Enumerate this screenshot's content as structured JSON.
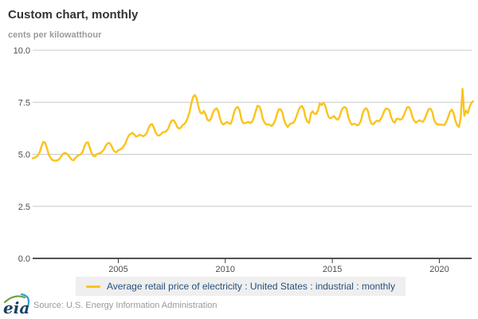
{
  "header": {
    "title": "Custom chart, monthly",
    "unit_label": "cents per kilowatthour"
  },
  "chart_data": {
    "type": "line",
    "title": "Custom chart, monthly",
    "ylabel": "cents per kilowatthour",
    "xlabel": "",
    "grid": "horizontal",
    "legend_position": "bottom",
    "ylim": [
      0,
      10
    ],
    "start_year": 2001,
    "start_month": "2001-01",
    "end_month": "2021-08",
    "x_ticks": [
      2005,
      2010,
      2015,
      2020
    ],
    "x_tick_labels": [
      "2005",
      "2010",
      "2015",
      "2020"
    ],
    "y_ticks": [
      0,
      2.5,
      5,
      7.5,
      10
    ],
    "y_tick_labels": [
      "0.0",
      "2.5",
      "5.0",
      "7.5",
      "10.0"
    ],
    "series": [
      {
        "name": "Average retail price of electricity : United States : industrial : monthly",
        "color": "#fbc31b",
        "frequency": "monthly",
        "values": [
          4.81,
          4.83,
          4.88,
          4.95,
          5.12,
          5.4,
          5.6,
          5.55,
          5.3,
          5.0,
          4.84,
          4.73,
          4.7,
          4.69,
          4.71,
          4.78,
          4.9,
          5.02,
          5.07,
          5.04,
          4.96,
          4.83,
          4.74,
          4.71,
          4.83,
          4.92,
          4.96,
          5.0,
          5.12,
          5.38,
          5.55,
          5.58,
          5.33,
          5.06,
          4.93,
          4.9,
          5.02,
          5.04,
          5.06,
          5.13,
          5.24,
          5.42,
          5.52,
          5.55,
          5.45,
          5.24,
          5.13,
          5.1,
          5.2,
          5.23,
          5.28,
          5.38,
          5.52,
          5.75,
          5.92,
          5.98,
          6.03,
          5.95,
          5.85,
          5.88,
          5.95,
          5.9,
          5.87,
          5.92,
          6.03,
          6.27,
          6.42,
          6.45,
          6.27,
          6.03,
          5.92,
          5.9,
          5.97,
          6.06,
          6.07,
          6.12,
          6.23,
          6.47,
          6.62,
          6.64,
          6.52,
          6.32,
          6.24,
          6.27,
          6.41,
          6.45,
          6.56,
          6.77,
          7.03,
          7.47,
          7.77,
          7.85,
          7.66,
          7.26,
          7.0,
          6.96,
          7.08,
          6.91,
          6.66,
          6.61,
          6.72,
          6.98,
          7.14,
          7.21,
          7.1,
          6.72,
          6.5,
          6.43,
          6.5,
          6.55,
          6.49,
          6.46,
          6.7,
          7.04,
          7.23,
          7.28,
          7.12,
          6.7,
          6.49,
          6.5,
          6.52,
          6.55,
          6.5,
          6.56,
          6.75,
          7.06,
          7.33,
          7.31,
          7.12,
          6.71,
          6.52,
          6.43,
          6.44,
          6.41,
          6.36,
          6.46,
          6.64,
          6.94,
          7.16,
          7.17,
          7.01,
          6.64,
          6.43,
          6.31,
          6.43,
          6.49,
          6.5,
          6.62,
          6.86,
          7.1,
          7.27,
          7.32,
          7.16,
          6.77,
          6.57,
          6.51,
          6.96,
          7.07,
          6.95,
          6.94,
          7.12,
          7.45,
          7.36,
          7.48,
          7.34,
          7.02,
          6.78,
          6.73,
          6.78,
          6.84,
          6.72,
          6.66,
          6.79,
          7.07,
          7.24,
          7.27,
          7.19,
          6.77,
          6.55,
          6.42,
          6.47,
          6.44,
          6.39,
          6.44,
          6.6,
          6.96,
          7.16,
          7.22,
          7.08,
          6.68,
          6.47,
          6.44,
          6.55,
          6.62,
          6.58,
          6.67,
          6.83,
          7.06,
          7.2,
          7.19,
          7.11,
          6.79,
          6.58,
          6.52,
          6.71,
          6.71,
          6.66,
          6.7,
          6.85,
          7.07,
          7.26,
          7.27,
          7.1,
          6.77,
          6.6,
          6.52,
          6.59,
          6.64,
          6.58,
          6.57,
          6.75,
          6.96,
          7.17,
          7.19,
          7.05,
          6.67,
          6.5,
          6.43,
          6.44,
          6.43,
          6.41,
          6.41,
          6.58,
          6.81,
          7.05,
          7.15,
          6.98,
          6.62,
          6.39,
          6.31,
          6.77,
          8.15,
          6.85,
          7.1,
          6.98,
          7.28,
          7.48,
          7.55
        ]
      }
    ]
  },
  "legend": {
    "label": "Average retail price of electricity : United States : industrial : monthly"
  },
  "footer": {
    "source": "Source: U.S. Energy Information Administration",
    "logo_text": "eia"
  },
  "colors": {
    "line_yellow": "#fbc31b",
    "legend_text": "#26517c",
    "legend_bg": "#efefef",
    "grid": "#c9c9c9",
    "axis": "#3c3c3c",
    "title": "#333333",
    "subtitle": "#9b9b9b",
    "source_text": "#999999",
    "logo_green": "#69a041",
    "logo_blue": "#2e9bd6",
    "logo_navy": "#17405f"
  }
}
